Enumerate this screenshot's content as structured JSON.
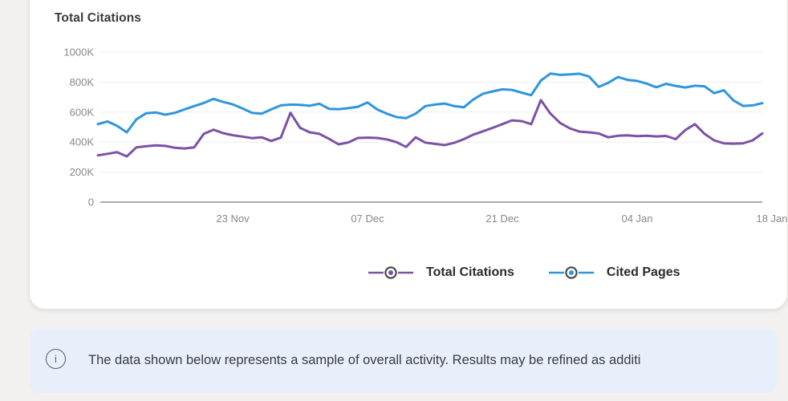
{
  "chart_data": {
    "type": "line",
    "title": "Total Citations",
    "grid": "horizontal",
    "legend_position": "bottom",
    "x_axis": {
      "description": "daily samples, tick labels every 14 days",
      "ticks": [
        {
          "day": 14,
          "label": "23 Nov"
        },
        {
          "day": 28,
          "label": "07 Dec"
        },
        {
          "day": 42,
          "label": "21 Dec"
        },
        {
          "day": 56,
          "label": "04 Jan"
        },
        {
          "day": 70,
          "label": "18 Jan"
        }
      ]
    },
    "y_axis": {
      "unit": "K",
      "range": [
        0,
        1000
      ],
      "ticks": [
        {
          "value": 0,
          "label": "0"
        },
        {
          "value": 200,
          "label": "200K"
        },
        {
          "value": 400,
          "label": "400K"
        },
        {
          "value": 600,
          "label": "600K"
        },
        {
          "value": 800,
          "label": "800K"
        },
        {
          "value": 1000,
          "label": "1000K"
        }
      ]
    },
    "series": [
      {
        "name": "Total Citations",
        "color": "#7b52a5",
        "values": [
          312,
          322,
          333,
          305,
          365,
          372,
          378,
          375,
          362,
          358,
          365,
          455,
          483,
          460,
          446,
          437,
          427,
          432,
          408,
          430,
          595,
          495,
          465,
          455,
          422,
          385,
          398,
          428,
          430,
          428,
          418,
          400,
          368,
          432,
          397,
          388,
          380,
          395,
          420,
          450,
          472,
          495,
          520,
          545,
          540,
          520,
          680,
          590,
          528,
          492,
          470,
          465,
          458,
          432,
          442,
          445,
          440,
          443,
          438,
          441,
          420,
          480,
          520,
          455,
          412,
          392,
          390,
          392,
          412,
          458
        ]
      },
      {
        "name": "Cited Pages",
        "color": "#2e96dc",
        "values": [
          520,
          538,
          508,
          465,
          552,
          592,
          598,
          583,
          595,
          618,
          640,
          661,
          688,
          668,
          652,
          625,
          595,
          590,
          618,
          645,
          650,
          648,
          642,
          656,
          622,
          620,
          626,
          636,
          664,
          618,
          590,
          567,
          560,
          590,
          640,
          650,
          657,
          640,
          632,
          685,
          723,
          738,
          752,
          748,
          730,
          713,
          810,
          857,
          848,
          852,
          856,
          838,
          768,
          795,
          834,
          815,
          808,
          790,
          766,
          789,
          775,
          764,
          776,
          772,
          726,
          746,
          678,
          641,
          645,
          660
        ]
      }
    ]
  },
  "banner": {
    "icon_glyph": "i",
    "text": "The data shown below represents a sample of overall activity. Results may be refined as additi"
  }
}
